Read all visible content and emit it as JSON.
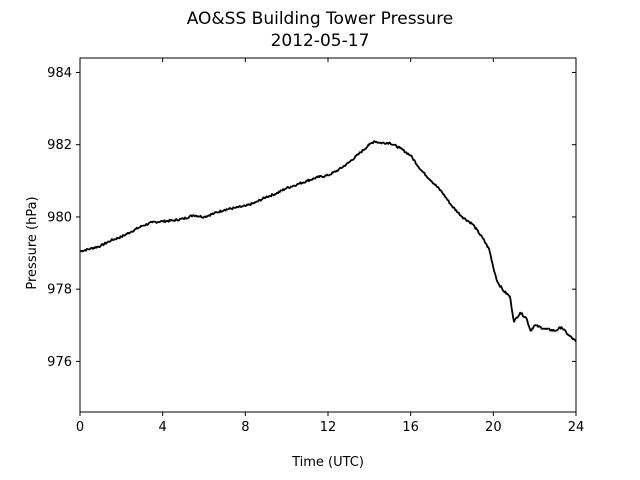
{
  "chart_data": {
    "type": "line",
    "title": "AO&SS Building Tower Pressure",
    "subtitle": "2012-05-17",
    "xlabel": "Time (UTC)",
    "ylabel": "Pressure (hPa)",
    "xlim": [
      0,
      24
    ],
    "ylim": [
      974.6,
      984.4
    ],
    "xticks": [
      0,
      4,
      8,
      12,
      16,
      20,
      24
    ],
    "yticks": [
      976,
      978,
      980,
      982,
      984
    ],
    "grid": false,
    "series": [
      {
        "color": "#000000",
        "x": [
          0,
          0.5,
          1,
          1.5,
          2,
          2.5,
          3,
          3.5,
          4,
          4.5,
          5,
          5.5,
          6,
          6.5,
          7,
          7.5,
          8,
          8.5,
          9,
          9.5,
          10,
          10.5,
          11,
          11.5,
          12,
          12.5,
          13,
          13.5,
          14,
          14.25,
          14.5,
          15,
          15.5,
          16,
          16.5,
          17,
          17.5,
          18,
          18.5,
          19,
          19.5,
          19.8,
          20,
          20.2,
          20.5,
          20.8,
          21,
          21.3,
          21.6,
          21.8,
          22,
          22.5,
          23,
          23.3,
          23.6,
          24
        ],
        "y": [
          979.05,
          979.12,
          979.2,
          979.35,
          979.45,
          979.6,
          979.75,
          979.85,
          979.88,
          979.9,
          979.95,
          980.05,
          980.0,
          980.1,
          980.2,
          980.25,
          980.3,
          980.4,
          980.55,
          980.65,
          980.8,
          980.9,
          981.0,
          981.1,
          981.15,
          981.3,
          981.5,
          981.75,
          982.0,
          982.1,
          982.05,
          982.05,
          981.9,
          981.7,
          981.3,
          981.0,
          980.7,
          980.3,
          980.0,
          979.8,
          979.4,
          979.1,
          978.6,
          978.2,
          977.95,
          977.8,
          977.1,
          977.35,
          977.2,
          976.85,
          977.0,
          976.9,
          976.85,
          976.95,
          976.75,
          976.55
        ]
      }
    ]
  }
}
